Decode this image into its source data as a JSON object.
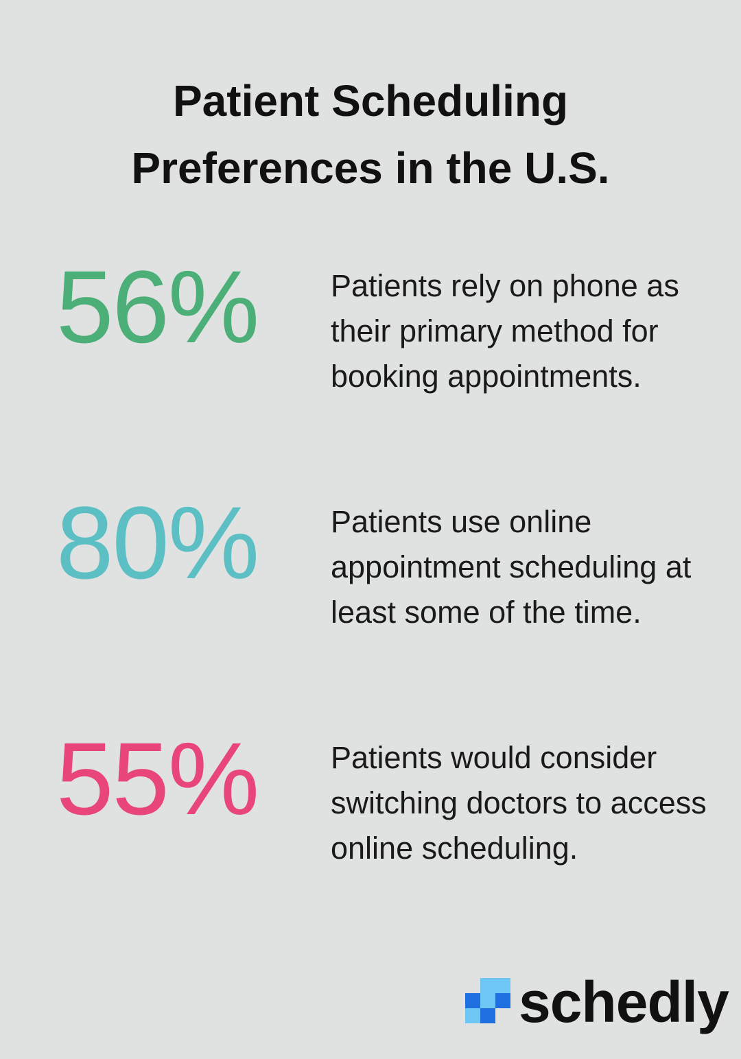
{
  "header": {
    "title": "Patient Scheduling Preferences in the U.S."
  },
  "stats": [
    {
      "value": "56%",
      "text": "Patients rely on phone as their primary method for booking appointments.",
      "color": "#4caf78"
    },
    {
      "value": "80%",
      "text": "Patients use online appointment scheduling at least some of the time.",
      "color": "#5bbfc4"
    },
    {
      "value": "55%",
      "text": "Patients would consider switching doctors to access online scheduling.",
      "color": "#e8457a"
    }
  ],
  "logo": {
    "text": "schedly"
  }
}
